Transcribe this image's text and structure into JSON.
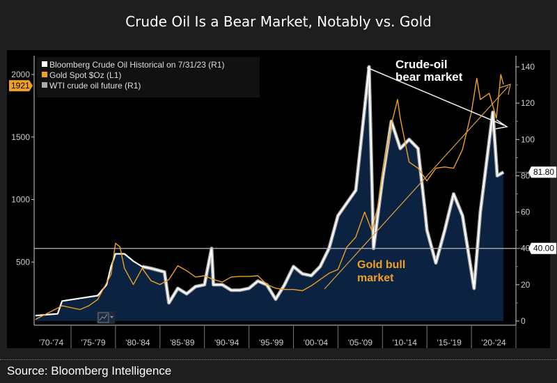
{
  "title": "Crude Oil Is a Bear Market, Notably vs. Gold",
  "source": "Source: Bloomberg Intelligence",
  "chart_data": {
    "type": "line",
    "title": "Crude Oil Is a Bear Market, Notably vs. Gold",
    "x_tick_labels": [
      "'70-'74",
      "'75-'79",
      "'80-'84",
      "'85-'89",
      "'90-'94",
      "'95-'99",
      "'00-'04",
      "'05-'09",
      "'10-'14",
      "'15-'19",
      "'20-'24"
    ],
    "xlim": [
      1970,
      2025
    ],
    "left_axis": {
      "ticks": [
        500,
        1000,
        1500,
        2000
      ],
      "ylim": [
        0,
        2050
      ],
      "current_label": "1921"
    },
    "right_axis": {
      "ticks": [
        0,
        20,
        40,
        60,
        80,
        100,
        120,
        140
      ],
      "ylim": [
        0,
        143
      ],
      "current_label": "81.80",
      "reference_label": "40.00",
      "reference_value": 40
    },
    "legend": {
      "placement": "top-left",
      "entries": [
        {
          "label": "Bloomberg Crude Oil Historical on 7/31/23 (R1)",
          "color": "#ffffff"
        },
        {
          "label": "Gold Spot $Oz (L1)",
          "color": "#f0a020"
        },
        {
          "label": "WTI crude oil future (R1)",
          "color": "#aaaaaa"
        }
      ]
    },
    "series": [
      {
        "name": "Bloomberg Crude Oil Historical on 7/31/23 (R1)",
        "axis": "right",
        "color": "#ffffff",
        "fill": "#0b2341",
        "x": [
          1971,
          1973.5,
          1974,
          1978,
          1979,
          1979.5,
          1980,
          1981,
          1982,
          1983,
          1984,
          1985.5,
          1986,
          1987,
          1988,
          1989,
          1990,
          1990.8,
          1991,
          1992,
          1993,
          1994,
          1995,
          1996,
          1997,
          1998,
          1999,
          2000,
          2001,
          2002,
          2003,
          2004,
          2005,
          2006,
          2007,
          2008.5,
          2009,
          2010,
          2011,
          2012,
          2013,
          2014,
          2014.8,
          2015,
          2016,
          2017,
          2018,
          2019,
          2020.3,
          2021,
          2022.4,
          2022.9,
          2023.6
        ],
        "y": [
          3,
          4,
          11,
          14,
          20,
          30,
          37,
          37,
          33,
          30,
          29,
          27,
          10,
          18,
          15,
          19,
          20,
          40,
          20,
          20,
          17,
          17,
          18,
          22,
          20,
          12,
          20,
          30,
          26,
          25,
          30,
          40,
          58,
          65,
          72,
          140,
          40,
          78,
          110,
          95,
          100,
          95,
          60,
          50,
          32,
          50,
          70,
          58,
          18,
          60,
          115,
          80,
          82
        ]
      },
      {
        "name": "Gold Spot $Oz (L1)",
        "axis": "left",
        "color": "#f0a020",
        "x": [
          1971,
          1974,
          1976,
          1977,
          1978,
          1979.5,
          1980,
          1980.5,
          1981,
          1982,
          1983,
          1984,
          1985,
          1986,
          1987,
          1988,
          1989,
          1990,
          1991,
          1992,
          1993,
          1994,
          1995,
          1996,
          1997,
          1998,
          1999,
          2000,
          2001,
          2002,
          2003,
          2004,
          2005,
          2006,
          2007,
          2008,
          2008.8,
          2009.5,
          2010,
          2011,
          2011.7,
          2012,
          2013,
          2014,
          2015,
          2016,
          2017,
          2018,
          2019,
          2020,
          2020.6,
          2021,
          2022,
          2022.8,
          2023.3,
          2023.6
        ],
        "y": [
          40,
          150,
          120,
          150,
          200,
          400,
          650,
          620,
          450,
          320,
          450,
          350,
          320,
          360,
          470,
          430,
          380,
          390,
          360,
          340,
          380,
          385,
          385,
          390,
          320,
          290,
          280,
          280,
          270,
          310,
          360,
          410,
          440,
          620,
          700,
          900,
          750,
          950,
          1200,
          1600,
          1800,
          1650,
          1300,
          1250,
          1150,
          1250,
          1260,
          1250,
          1400,
          1700,
          1970,
          1800,
          1850,
          1650,
          2000,
          1921
        ]
      },
      {
        "name": "WTI crude oil future (R1)",
        "axis": "right",
        "color": "#aaaaaa",
        "x": [
          1983,
          1984,
          1985.5,
          1986,
          1987,
          1988,
          1989,
          1990,
          1990.8,
          1991,
          1992,
          1993,
          1994,
          1995,
          1996,
          1997,
          1998,
          1999,
          2000,
          2001,
          2002,
          2003,
          2004,
          2005,
          2006,
          2007,
          2008.5,
          2009,
          2010,
          2011,
          2012,
          2013,
          2014,
          2014.8,
          2015,
          2016,
          2017,
          2018,
          2019,
          2020.3,
          2021,
          2022.4,
          2022.9,
          2023.6
        ],
        "y": [
          30,
          29,
          27,
          10,
          18,
          15,
          19,
          20,
          40,
          20,
          20,
          17,
          17,
          18,
          22,
          20,
          12,
          20,
          30,
          26,
          25,
          30,
          40,
          58,
          65,
          72,
          140,
          40,
          78,
          110,
          95,
          100,
          95,
          60,
          50,
          32,
          50,
          70,
          58,
          18,
          60,
          115,
          80,
          82
        ]
      }
    ],
    "annotations": [
      {
        "text": "Crude-oil bear market",
        "color": "#ffffff"
      },
      {
        "text": "Gold bull market",
        "color": "#f0a020"
      }
    ]
  }
}
